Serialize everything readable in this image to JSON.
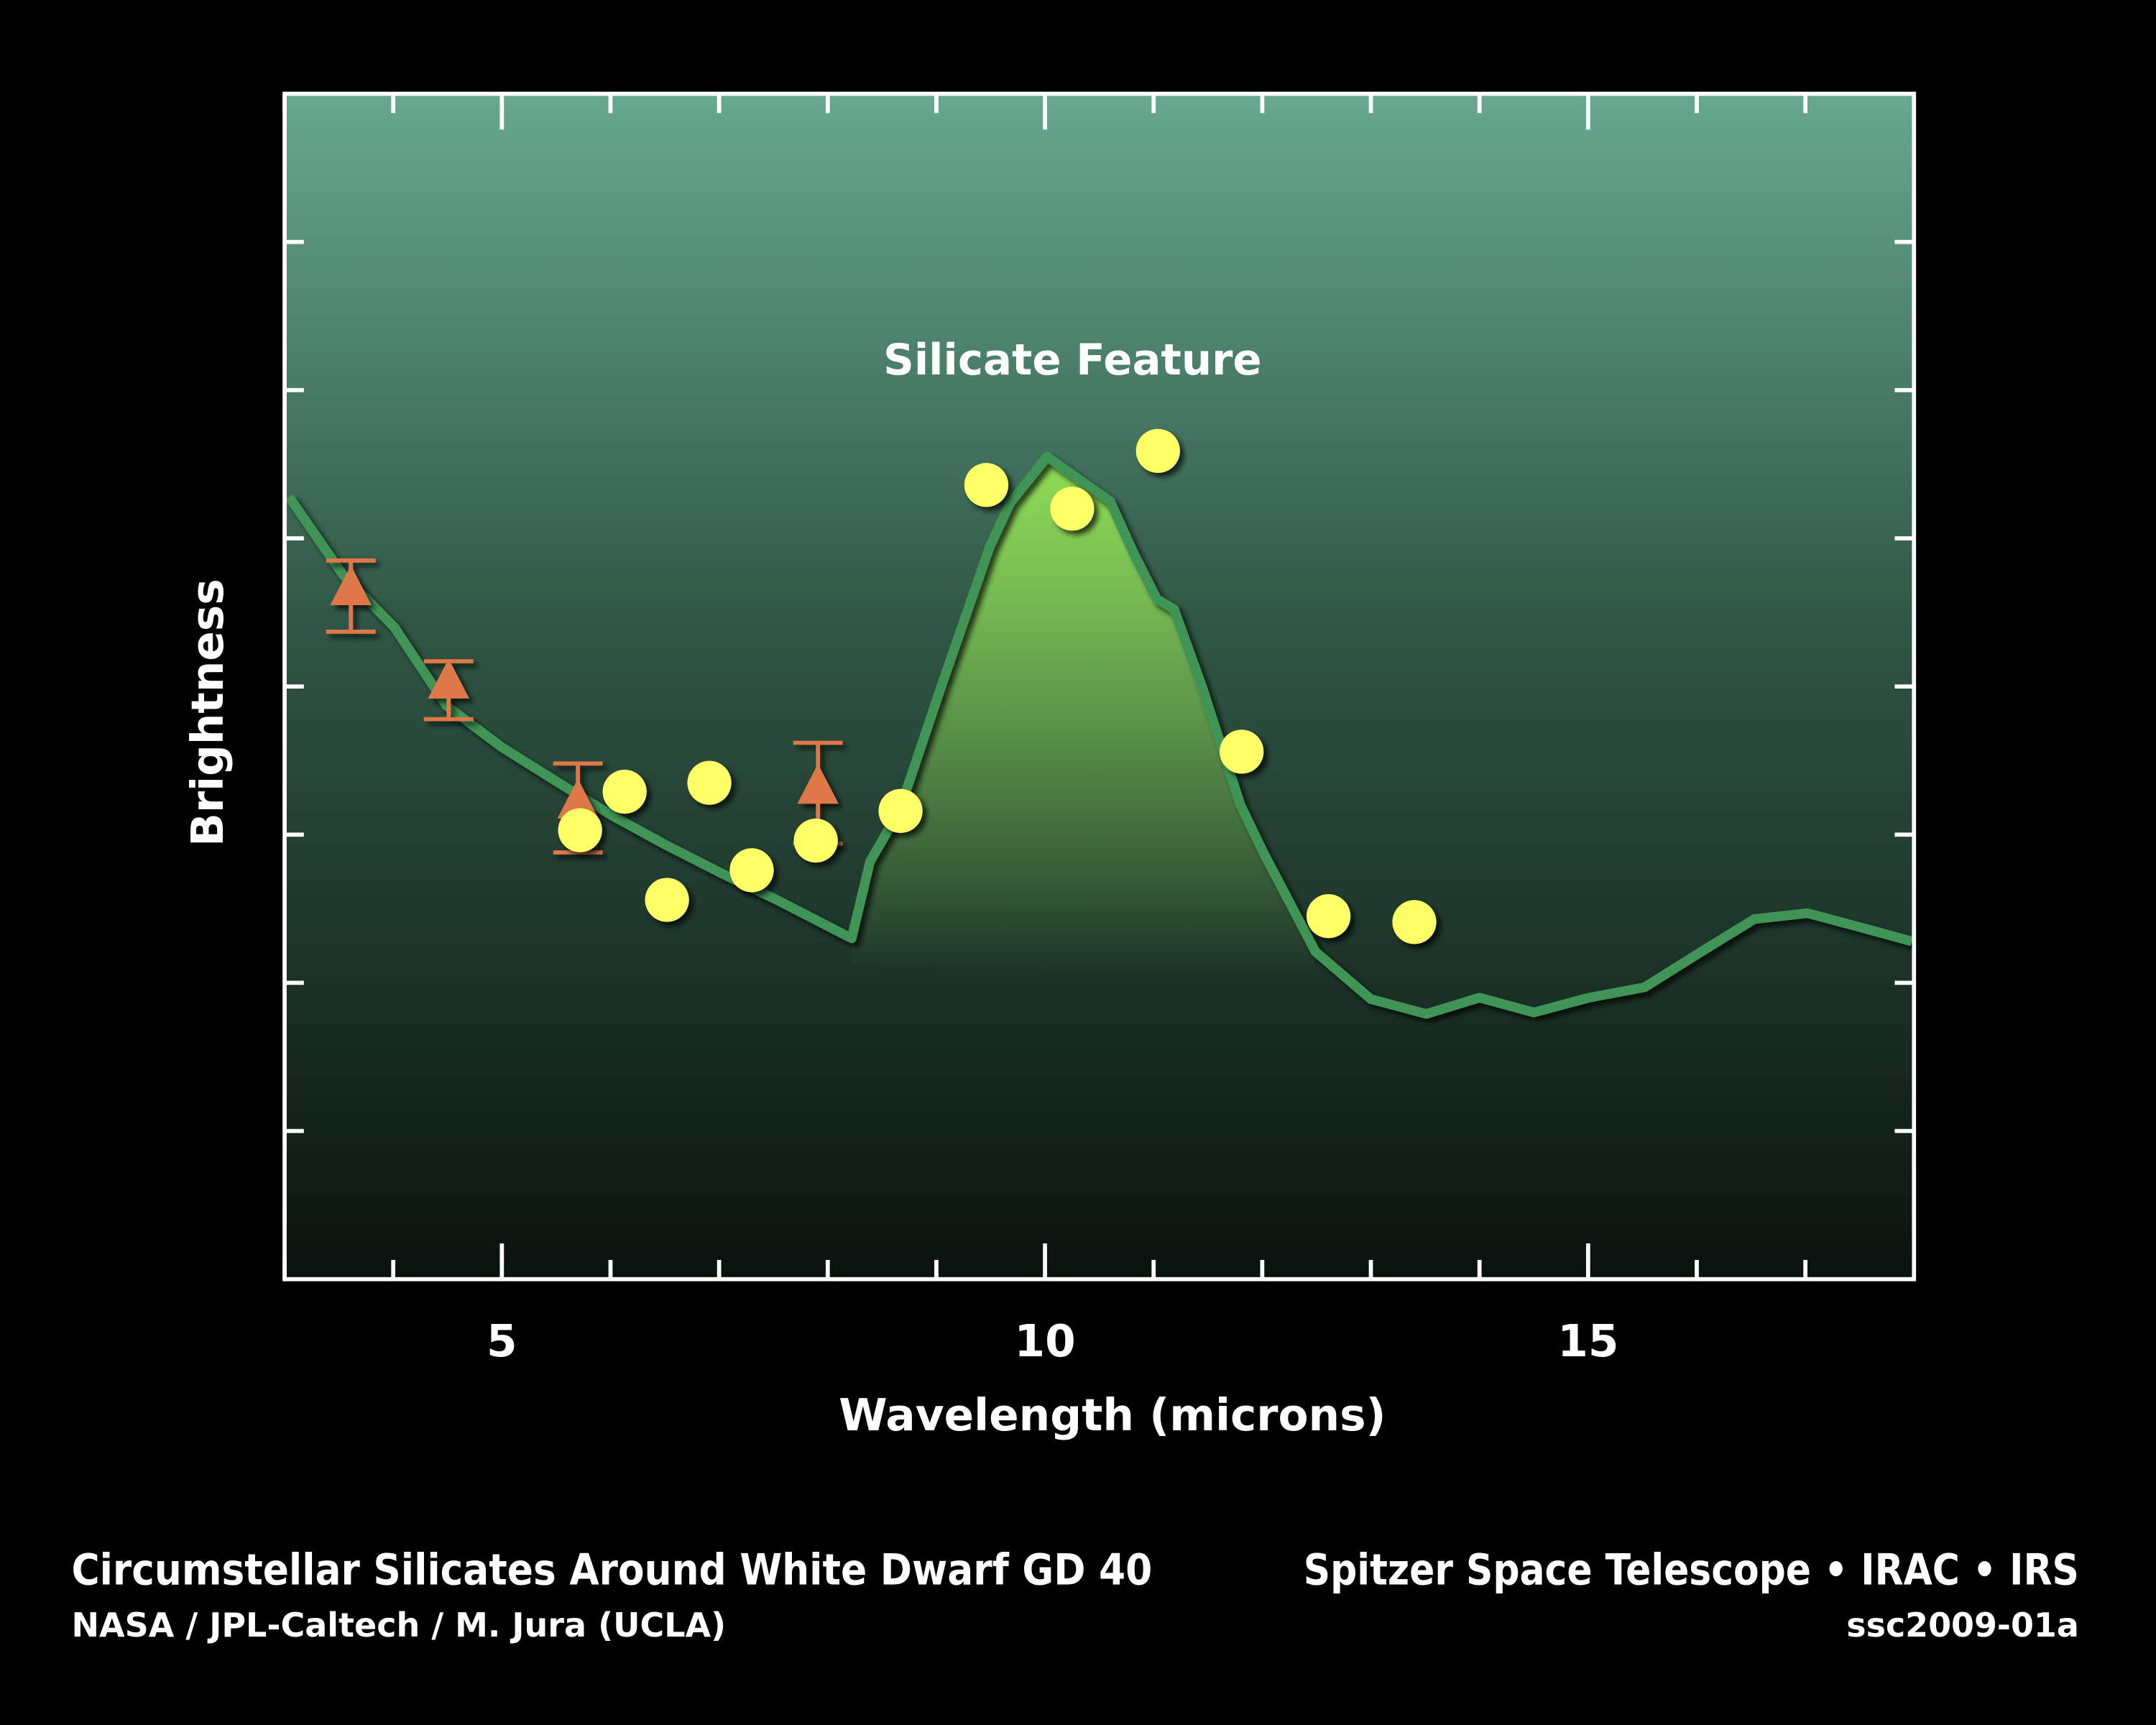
{
  "chart_data": {
    "type": "scatter",
    "title": "",
    "annotation": "Silicate Feature",
    "xlabel": "Wavelength (microns)",
    "ylabel": "Brightness",
    "xlim": [
      3,
      18
    ],
    "ylim": [
      0,
      8
    ],
    "x_ticks": [
      5,
      10,
      15
    ],
    "x_tick_labels": [
      "5",
      "10",
      "15"
    ],
    "y_tick_labels_shown": false,
    "grid": false,
    "legend": "none",
    "colors": {
      "background_top": "#67a88f",
      "background_bottom": "#0a120e",
      "model_line": "#3f9457",
      "feature_fill": "#8fdc55",
      "circles": "#ffff66",
      "triangles": "#de784a",
      "annotation": "#a6f05a"
    },
    "model": {
      "x": [
        3.04,
        3.54,
        4.01,
        4.49,
        5.0,
        5.5,
        6.01,
        6.51,
        7.02,
        7.53,
        8.22,
        8.39,
        8.66,
        9.04,
        9.49,
        9.68,
        10.02,
        10.6,
        10.81,
        11.03,
        11.19,
        11.45,
        11.8,
        12.01,
        12.49,
        13.0,
        13.51,
        14.0,
        14.5,
        15.01,
        15.52,
        16.02,
        16.53,
        17.02,
        17.53,
        17.98
      ],
      "y": [
        5.28,
        4.75,
        4.4,
        3.87,
        3.59,
        3.36,
        3.13,
        2.93,
        2.74,
        2.56,
        2.3,
        2.82,
        3.16,
        3.99,
        4.94,
        5.24,
        5.55,
        5.25,
        4.91,
        4.59,
        4.52,
        3.99,
        3.2,
        2.88,
        2.21,
        1.89,
        1.79,
        1.9,
        1.8,
        1.9,
        1.97,
        2.2,
        2.43,
        2.47,
        2.37,
        2.28
      ]
    },
    "feature_range": [
      8.22,
      12.49
    ],
    "circles": {
      "x": [
        5.72,
        6.13,
        6.52,
        6.91,
        7.3,
        7.89,
        8.67,
        9.46,
        10.25,
        11.04,
        11.81,
        12.61,
        13.4
      ],
      "y": [
        3.03,
        3.29,
        2.56,
        3.35,
        2.76,
        2.96,
        3.16,
        5.36,
        5.2,
        5.59,
        3.56,
        2.45,
        2.41
      ]
    },
    "triangles": {
      "x": [
        3.61,
        4.51,
        5.7,
        7.91
      ],
      "y": [
        4.66,
        4.03,
        3.22,
        3.32
      ],
      "err_low": [
        4.37,
        3.78,
        2.88,
        2.94
      ],
      "err_high": [
        4.85,
        4.17,
        3.48,
        3.62
      ]
    }
  },
  "caption": {
    "title": "Circumstellar Silicates Around White Dwarf GD 40",
    "credit": "NASA / JPL-Caltech / M. Jura (UCLA)",
    "instruments": "Spitzer Space Telescope • IRAC • IRS",
    "id": "ssc2009-01a"
  }
}
